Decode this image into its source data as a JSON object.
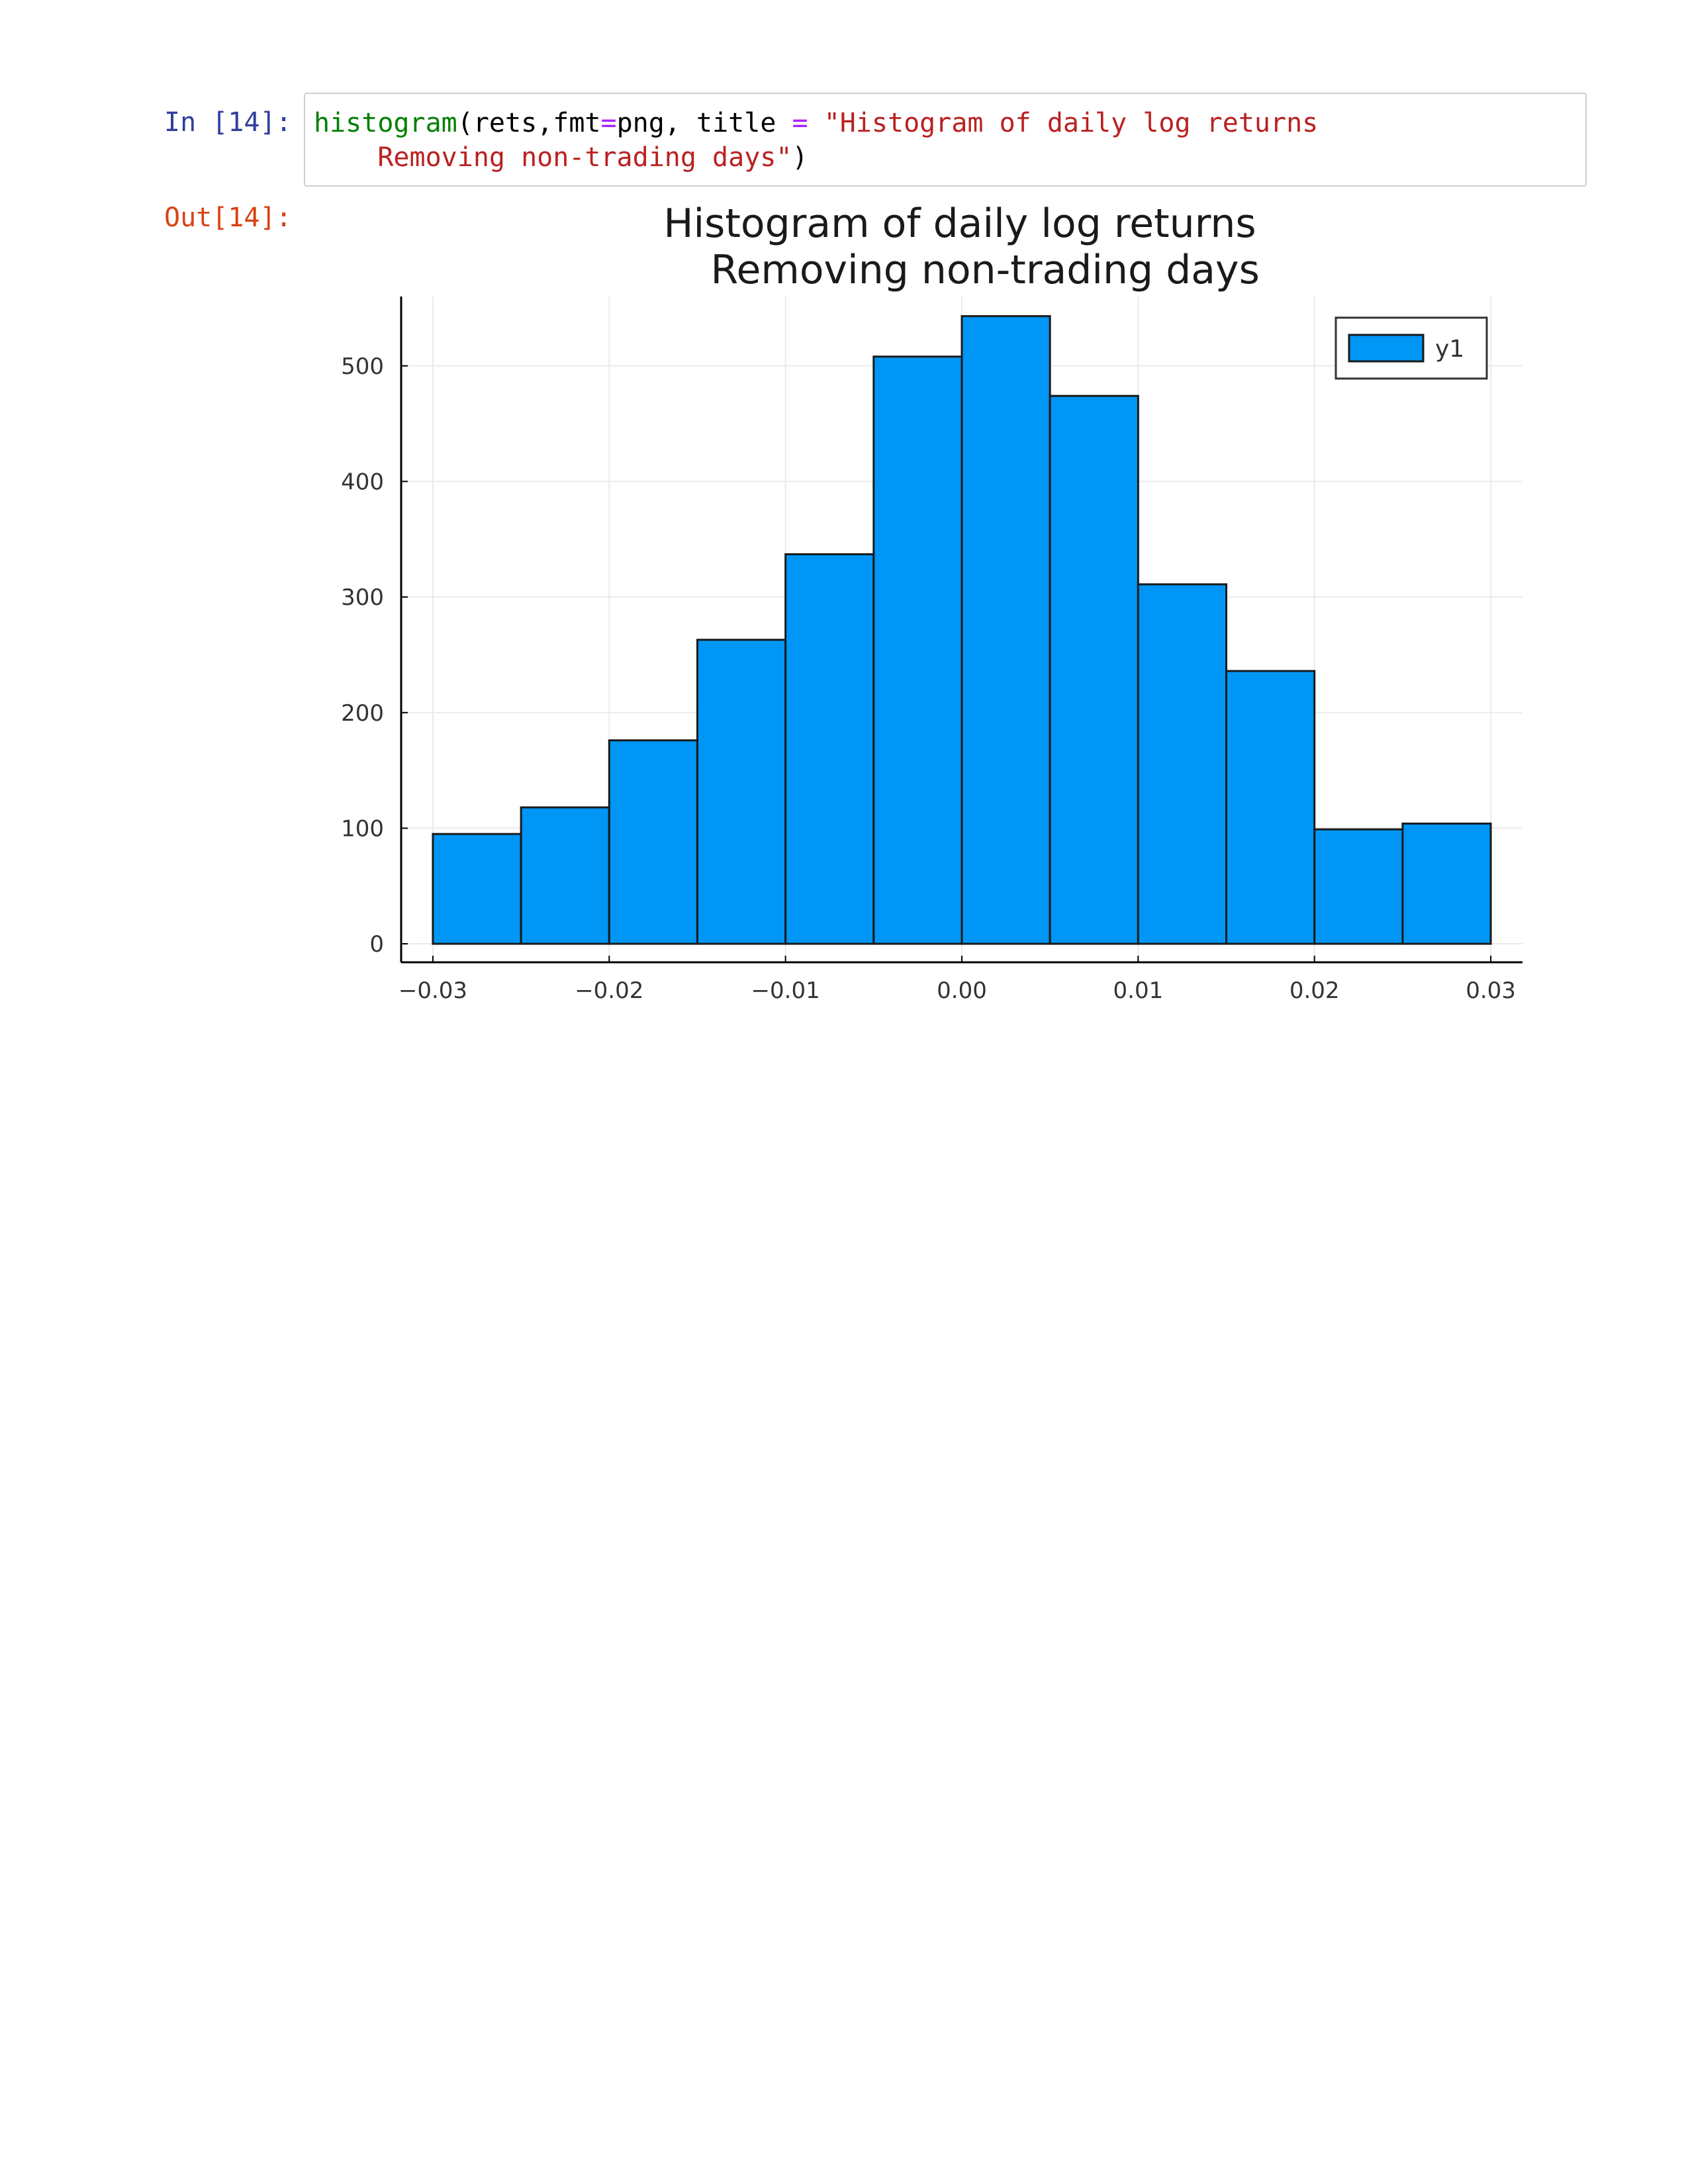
{
  "cell": {
    "in_prompt": "In [14]:",
    "out_prompt": "Out[14]:",
    "code": {
      "fn": "histogram",
      "args_start": "(rets,fmt",
      "eq1": "=",
      "args_mid": "png, title ",
      "eq2": "=",
      "space": " ",
      "string_line1": "\"Histogram of daily log returns",
      "string_line2": "    Removing non-trading days\"",
      "close": ")"
    }
  },
  "colors": {
    "bar": "#0096f5",
    "bar_stroke": "#1a1a1a",
    "grid": "#ebebeb",
    "axis": "#000000"
  },
  "chart_data": {
    "type": "bar",
    "title": [
      "Histogram of daily log returns",
      "    Removing non-trading days"
    ],
    "xlabel": "",
    "ylabel": "",
    "bin_edges": [
      -0.03,
      -0.025,
      -0.02,
      -0.015,
      -0.01,
      -0.005,
      0.0,
      0.005,
      0.01,
      0.015,
      0.02,
      0.025,
      0.03
    ],
    "series": [
      {
        "name": "y1",
        "values": [
          95,
          118,
          176,
          263,
          337,
          508,
          543,
          474,
          311,
          236,
          99,
          104
        ]
      }
    ],
    "xlim": [
      -0.0318,
      0.0318
    ],
    "ylim": [
      -16,
      560
    ],
    "xticks": [
      -0.03,
      -0.02,
      -0.01,
      0.0,
      0.01,
      0.02,
      0.03
    ],
    "xtick_labels": [
      "−0.03",
      "−0.02",
      "−0.01",
      "0.00",
      "0.01",
      "0.02",
      "0.03"
    ],
    "yticks": [
      0,
      100,
      200,
      300,
      400,
      500
    ],
    "ytick_labels": [
      "0",
      "100",
      "200",
      "300",
      "400",
      "500"
    ],
    "grid": true,
    "legend_position": "top-right"
  }
}
